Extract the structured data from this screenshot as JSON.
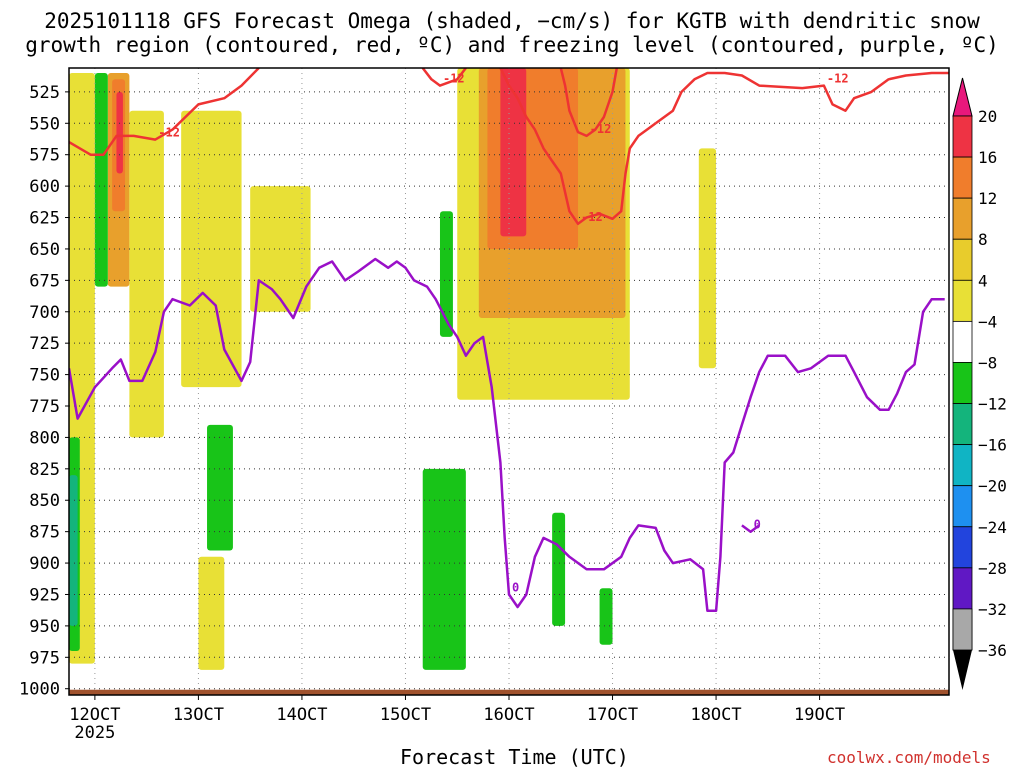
{
  "chart_data": {
    "type": "heatmap",
    "title_line1": "2025101118 GFS Forecast Omega (shaded, −cm/s) for KGTB with dendritic snow",
    "title_line2": "growth region (contoured, red, ºC) and freezing level (contoured, purple, ºC)",
    "xlabel": "Forecast Time (UTC)",
    "credit": "coolwx.com/models",
    "x_range_hours": [
      0,
      204
    ],
    "x_ticks": [
      {
        "label": "12OCT",
        "hour": 6,
        "sublabel": "2025"
      },
      {
        "label": "13OCT",
        "hour": 30
      },
      {
        "label": "14OCT",
        "hour": 54
      },
      {
        "label": "15OCT",
        "hour": 78
      },
      {
        "label": "16OCT",
        "hour": 102
      },
      {
        "label": "17OCT",
        "hour": 126
      },
      {
        "label": "18OCT",
        "hour": 150
      },
      {
        "label": "19OCT",
        "hour": 174
      }
    ],
    "y_range_hpa": [
      1005,
      506
    ],
    "y_ticks": [
      525,
      550,
      575,
      600,
      625,
      650,
      675,
      700,
      725,
      750,
      775,
      800,
      825,
      850,
      875,
      900,
      925,
      950,
      975,
      1000
    ],
    "colorbar": {
      "labels": [
        "20",
        "16",
        "12",
        "8",
        "4",
        "−4",
        "−8",
        "−12",
        "−16",
        "−20",
        "−24",
        "−28",
        "−32",
        "−36"
      ],
      "colors": [
        "#ee3344",
        "#f07d2c",
        "#e8a02c",
        "#e8cc2c",
        "#e8e036",
        "#ffffff",
        "#18c418",
        "#14b47c",
        "#10b4c4",
        "#1e90f0",
        "#2244dd",
        "#6018c4",
        "#9e10c0",
        "#a8a8a8"
      ],
      "range": [
        -36,
        24
      ]
    },
    "shaded_regions": [
      {
        "value": 4,
        "color": "#e8e036",
        "x": [
          0,
          6
        ],
        "p": [
          510,
          980
        ]
      },
      {
        "value": 8,
        "color": "#e8a02c",
        "x": [
          9,
          14
        ],
        "p": [
          510,
          680
        ]
      },
      {
        "value": 12,
        "color": "#f07d2c",
        "x": [
          10,
          13
        ],
        "p": [
          515,
          620
        ]
      },
      {
        "value": 16,
        "color": "#ee3344",
        "x": [
          11,
          12.5
        ],
        "p": [
          525,
          590
        ]
      },
      {
        "value": 4,
        "color": "#e8e036",
        "x": [
          14,
          22
        ],
        "p": [
          540,
          800
        ]
      },
      {
        "value": 4,
        "color": "#e8e036",
        "x": [
          26,
          40
        ],
        "p": [
          540,
          760
        ]
      },
      {
        "value": 4,
        "color": "#e8e036",
        "x": [
          30,
          36
        ],
        "p": [
          895,
          985
        ]
      },
      {
        "value": 4,
        "color": "#e8e036",
        "x": [
          42,
          56
        ],
        "p": [
          600,
          700
        ]
      },
      {
        "value": 4,
        "color": "#e8e036",
        "x": [
          90,
          130
        ],
        "p": [
          506,
          770
        ]
      },
      {
        "value": 8,
        "color": "#e8a02c",
        "x": [
          95,
          129
        ],
        "p": [
          506,
          705
        ]
      },
      {
        "value": 12,
        "color": "#f07d2c",
        "x": [
          97,
          118
        ],
        "p": [
          506,
          650
        ]
      },
      {
        "value": 16,
        "color": "#ee3344",
        "x": [
          100,
          106
        ],
        "p": [
          506,
          640
        ]
      },
      {
        "value": 4,
        "color": "#e8e036",
        "x": [
          146,
          150
        ],
        "p": [
          570,
          745
        ]
      },
      {
        "value": -8,
        "color": "#18c418",
        "x": [
          0,
          2.5
        ],
        "p": [
          800,
          970
        ]
      },
      {
        "value": -8,
        "color": "#18c418",
        "x": [
          6,
          9
        ],
        "p": [
          510,
          680
        ]
      },
      {
        "value": -8,
        "color": "#18c418",
        "x": [
          32,
          38
        ],
        "p": [
          790,
          890
        ]
      },
      {
        "value": -8,
        "color": "#18c418",
        "x": [
          86,
          89
        ],
        "p": [
          620,
          720
        ]
      },
      {
        "value": -8,
        "color": "#18c418",
        "x": [
          82,
          92
        ],
        "p": [
          825,
          985
        ]
      },
      {
        "value": -8,
        "color": "#18c418",
        "x": [
          112,
          115
        ],
        "p": [
          860,
          950
        ]
      },
      {
        "value": -8,
        "color": "#18c418",
        "x": [
          123,
          126
        ],
        "p": [
          920,
          965
        ]
      },
      {
        "value": -12,
        "color": "#14b47c",
        "x": [
          0,
          2
        ],
        "p": [
          830,
          950
        ]
      }
    ],
    "dgz_contours": [
      {
        "label": "-12",
        "color": "#ee3333",
        "points": [
          [
            0,
            565
          ],
          [
            5,
            575
          ],
          [
            8,
            575
          ],
          [
            11,
            560
          ],
          [
            15,
            560
          ],
          [
            20,
            563
          ],
          [
            24,
            555
          ],
          [
            30,
            535
          ],
          [
            36,
            530
          ],
          [
            40,
            520
          ],
          [
            44,
            506
          ]
        ]
      },
      {
        "label": "-12",
        "color": "#ee3333",
        "points": [
          [
            82,
            506
          ],
          [
            84,
            515
          ],
          [
            86,
            520
          ],
          [
            90,
            515
          ],
          [
            92,
            506
          ]
        ]
      },
      {
        "label": "-12",
        "color": "#ee3333",
        "points": [
          [
            100,
            506
          ],
          [
            102,
            520
          ],
          [
            104,
            530
          ],
          [
            106,
            545
          ],
          [
            108,
            555
          ],
          [
            110,
            570
          ],
          [
            112,
            580
          ],
          [
            114,
            590
          ],
          [
            116,
            620
          ],
          [
            118,
            630
          ],
          [
            120,
            625
          ],
          [
            123,
            622
          ],
          [
            126,
            626
          ],
          [
            128,
            620
          ],
          [
            129,
            590
          ],
          [
            130,
            570
          ],
          [
            132,
            560
          ],
          [
            136,
            550
          ]
        ]
      },
      {
        "label": "-12",
        "color": "#ee3333",
        "points": [
          [
            114,
            506
          ],
          [
            115,
            520
          ],
          [
            116,
            540
          ],
          [
            118,
            557
          ],
          [
            120,
            560
          ],
          [
            122,
            555
          ],
          [
            124,
            545
          ],
          [
            126,
            525
          ],
          [
            127,
            506
          ]
        ]
      },
      {
        "label": "-12",
        "color": "#ee3333",
        "points": [
          [
            136,
            550
          ],
          [
            140,
            540
          ],
          [
            142,
            525
          ],
          [
            145,
            515
          ],
          [
            148,
            510
          ],
          [
            152,
            510
          ],
          [
            156,
            512
          ],
          [
            160,
            520
          ],
          [
            170,
            522
          ],
          [
            175,
            520
          ],
          [
            177,
            535
          ],
          [
            180,
            540
          ],
          [
            182,
            530
          ],
          [
            186,
            525
          ],
          [
            190,
            515
          ],
          [
            194,
            512
          ],
          [
            200,
            510
          ],
          [
            204,
            510
          ]
        ]
      }
    ],
    "freezing_contours": [
      {
        "label": "0",
        "color": "#9a10c8",
        "points": [
          [
            0,
            745
          ],
          [
            2,
            785
          ],
          [
            6,
            760
          ],
          [
            10,
            745
          ],
          [
            12,
            738
          ],
          [
            14,
            755
          ],
          [
            17,
            755
          ],
          [
            20,
            732
          ],
          [
            22,
            700
          ],
          [
            24,
            690
          ],
          [
            28,
            695
          ],
          [
            31,
            685
          ],
          [
            34,
            695
          ],
          [
            36,
            730
          ],
          [
            40,
            755
          ],
          [
            42,
            740
          ],
          [
            44,
            675
          ],
          [
            47,
            682
          ],
          [
            49,
            690
          ],
          [
            52,
            705
          ],
          [
            55,
            680
          ],
          [
            58,
            665
          ],
          [
            61,
            660
          ],
          [
            64,
            675
          ],
          [
            67,
            668
          ],
          [
            71,
            658
          ],
          [
            74,
            665
          ],
          [
            76,
            660
          ],
          [
            78,
            665
          ],
          [
            80,
            675
          ],
          [
            83,
            680
          ],
          [
            85,
            690
          ],
          [
            88,
            710
          ],
          [
            90,
            720
          ],
          [
            92,
            735
          ],
          [
            94,
            725
          ],
          [
            96,
            720
          ],
          [
            98,
            760
          ],
          [
            100,
            820
          ],
          [
            101,
            880
          ],
          [
            102,
            925
          ],
          [
            104,
            935
          ],
          [
            106,
            925
          ],
          [
            108,
            895
          ],
          [
            110,
            880
          ],
          [
            113,
            885
          ],
          [
            116,
            895
          ],
          [
            120,
            905
          ],
          [
            124,
            905
          ],
          [
            128,
            895
          ],
          [
            130,
            880
          ],
          [
            132,
            870
          ],
          [
            136,
            872
          ],
          [
            138,
            890
          ],
          [
            140,
            900
          ],
          [
            144,
            897
          ],
          [
            147,
            905
          ],
          [
            148,
            938
          ],
          [
            150,
            938
          ],
          [
            151,
            895
          ],
          [
            152,
            820
          ],
          [
            154,
            812
          ],
          [
            156,
            790
          ],
          [
            158,
            768
          ],
          [
            160,
            748
          ],
          [
            162,
            735
          ],
          [
            166,
            735
          ],
          [
            169,
            748
          ],
          [
            172,
            745
          ],
          [
            176,
            735
          ],
          [
            180,
            735
          ],
          [
            182,
            748
          ],
          [
            185,
            768
          ],
          [
            188,
            778
          ],
          [
            190,
            778
          ],
          [
            192,
            765
          ],
          [
            194,
            748
          ],
          [
            196,
            742
          ],
          [
            198,
            700
          ],
          [
            200,
            690
          ],
          [
            203,
            690
          ]
        ]
      },
      {
        "label": "0",
        "color": "#9a10c8",
        "points": [
          [
            156,
            870
          ],
          [
            158,
            875
          ],
          [
            160,
            870
          ]
        ]
      }
    ]
  }
}
